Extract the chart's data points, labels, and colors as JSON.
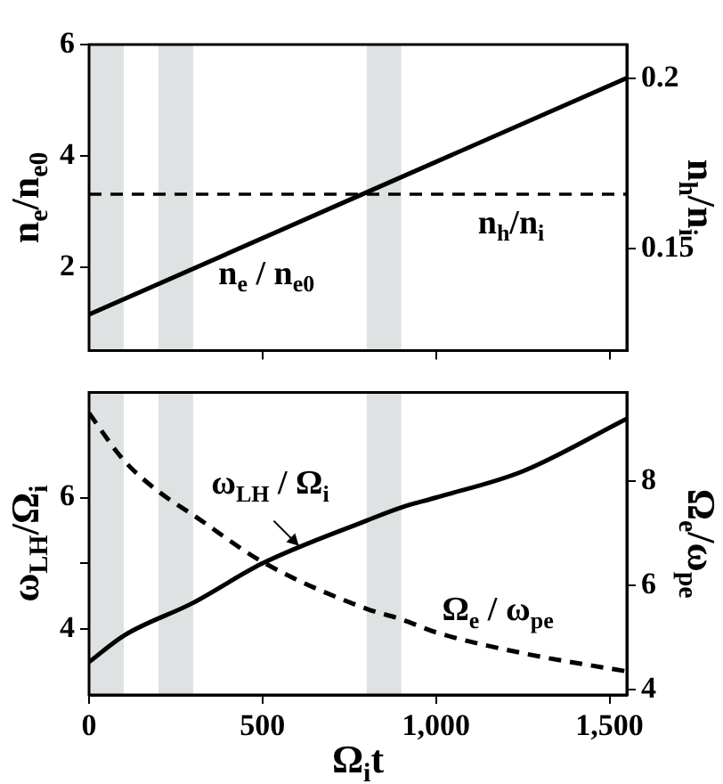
{
  "chart_data": [
    {
      "type": "line",
      "xlim": [
        0,
        1550
      ],
      "xticks": [
        {
          "value": 500,
          "label": null
        },
        {
          "value": 1000,
          "label": null
        },
        {
          "value": 1500,
          "label": null
        }
      ],
      "ylim": [
        0.5,
        6
      ],
      "yticks": [
        2,
        4,
        6
      ],
      "y2lim": [
        0.12,
        0.21
      ],
      "y2ticks": [
        0.15,
        0.2
      ],
      "ylabel": "n$_{e}$/n$_{e0}$",
      "y2label": "n$_{h}$/n$_{i}$",
      "tick_labels": "y",
      "grid": false,
      "legend": false,
      "bands": [
        {
          "axis": "x",
          "from": 0,
          "to": 100,
          "color": "#dfe2e2"
        },
        {
          "axis": "x",
          "from": 200,
          "to": 300,
          "color": "#dfe2e2"
        },
        {
          "axis": "x",
          "from": 800,
          "to": 900,
          "color": "#dfe2e2"
        }
      ],
      "ref_lines": [
        {
          "axis": "y2",
          "value": 0.166,
          "label": "n$_{h}$/n$_{i}$",
          "color": "#000000",
          "line_style": "dashed"
        }
      ],
      "series": [
        {
          "name": "n$_{e}$ / n$_{e0}$",
          "color": "#000000",
          "x": [
            0,
            1550
          ],
          "values": [
            1.15,
            5.4
          ],
          "line_style": "solid"
        }
      ]
    },
    {
      "type": "line",
      "xlim": [
        0,
        1550
      ],
      "xticks": [
        0,
        500,
        {
          "value": 1000,
          "label": "1,000"
        },
        {
          "value": 1500,
          "label": "1,500"
        }
      ],
      "ylim": [
        3,
        7.6
      ],
      "yticks": [
        4,
        {
          "value": 5,
          "label": null
        },
        6
      ],
      "y2lim": [
        3.9,
        9.7
      ],
      "y2ticks": [
        4,
        6,
        8
      ],
      "xlabel": "Ω$_{i}$t",
      "ylabel": "ω$_{LH}$/Ω$_{i}$",
      "y2label": "Ω$_{e}$/ω$_{pe}$",
      "grid": false,
      "legend": false,
      "bands": [
        {
          "axis": "x",
          "from": 0,
          "to": 100,
          "color": "#dfe2e2"
        },
        {
          "axis": "x",
          "from": 200,
          "to": 300,
          "color": "#dfe2e2"
        },
        {
          "axis": "x",
          "from": 800,
          "to": 900,
          "color": "#dfe2e2"
        }
      ],
      "series": [
        {
          "name": "ω$_{LH}$ / Ω$_{i}$",
          "color": "#000000",
          "line_style": "solid",
          "x": [
            0,
            100,
            300,
            500,
            800,
            900,
            1000,
            1250,
            1550
          ],
          "values": [
            3.5,
            3.9,
            4.4,
            5.0,
            5.65,
            5.85,
            6.0,
            6.4,
            7.2
          ]
        },
        {
          "name": "Ω$_{e}$ / ω$_{pe}$",
          "color": "#000000",
          "line_style": "dashed",
          "axis": "y2",
          "x": [
            0,
            100,
            200,
            300,
            500,
            800,
            900,
            1000,
            1250,
            1550
          ],
          "values": [
            9.3,
            8.4,
            7.8,
            7.35,
            6.45,
            5.55,
            5.35,
            5.1,
            4.7,
            4.35
          ]
        }
      ]
    }
  ]
}
